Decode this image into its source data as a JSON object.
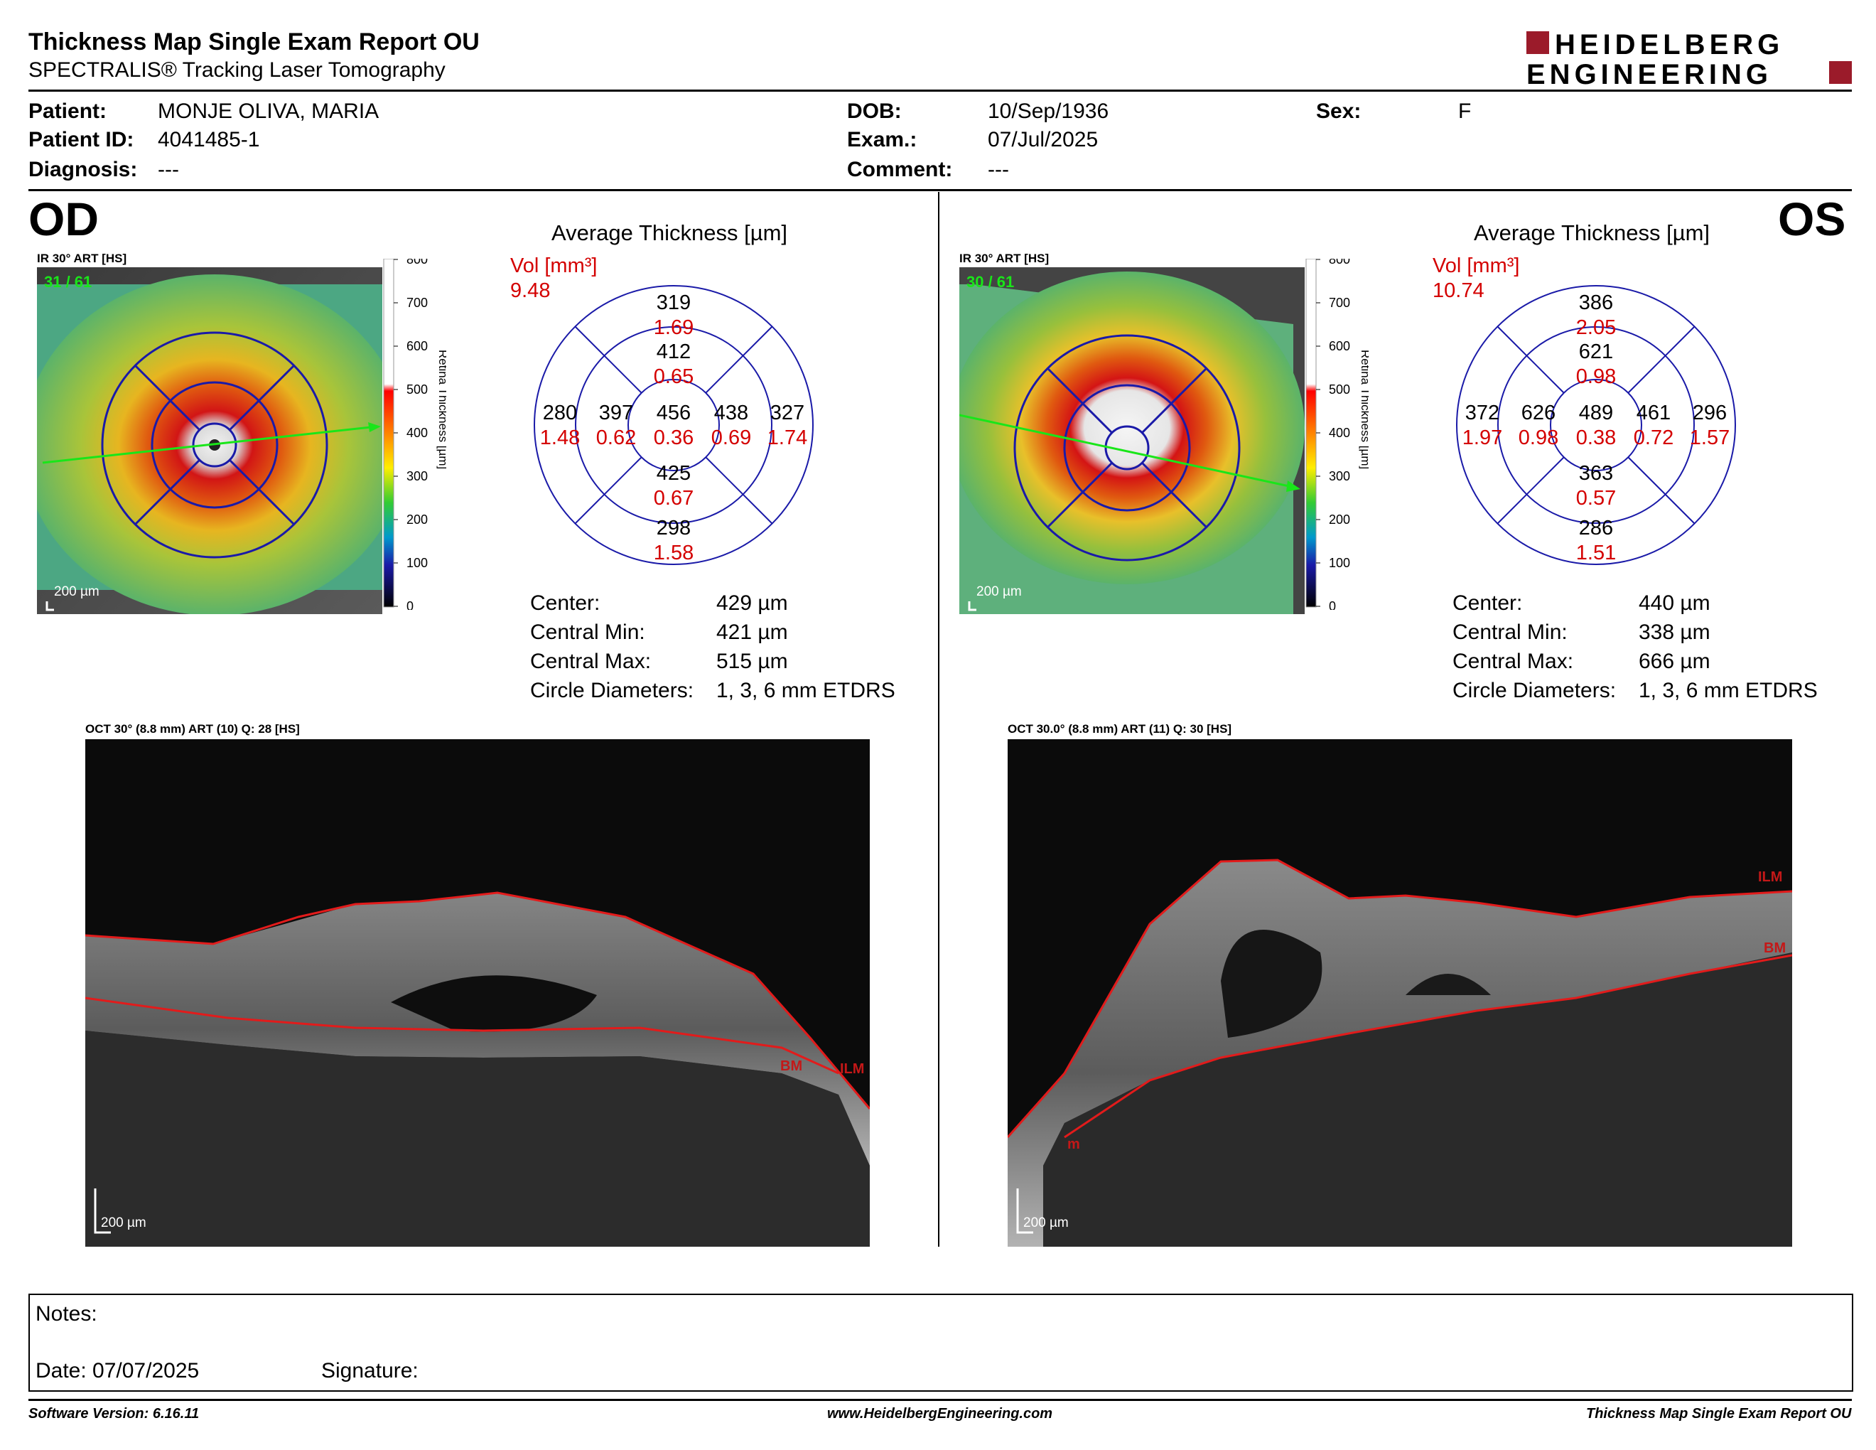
{
  "header": {
    "title": "Thickness Map Single Exam Report OU",
    "subtitle": "SPECTRALIS® Tracking Laser Tomography",
    "logo_line1": "HEIDELBERG",
    "logo_line2": "ENGINEERING"
  },
  "patient": {
    "patient_label": "Patient:",
    "patient_value": "MONJE OLIVA, MARIA",
    "id_label": "Patient ID:",
    "id_value": "4041485-1",
    "diagnosis_label": "Diagnosis:",
    "diagnosis_value": "---",
    "dob_label": "DOB:",
    "dob_value": "10/Sep/1936",
    "exam_label": "Exam.:",
    "exam_value": "07/Jul/2025",
    "comment_label": "Comment:",
    "comment_value": "---",
    "sex_label": "Sex:",
    "sex_value": "F"
  },
  "common": {
    "avg_title": "Average Thickness [µm]",
    "vol_label": "Vol [mm³]",
    "scale_title": "Retina  Thickness [µm]",
    "scale_ticks": [
      "800",
      "700",
      "600",
      "500",
      "400",
      "300",
      "200",
      "100",
      "0"
    ],
    "scalebar": "200 µm",
    "center_label": "Center:",
    "min_label": "Central Min:",
    "max_label": "Central Max:",
    "diam_label": "Circle Diameters:",
    "diam_value": "1, 3, 6 mm ETDRS"
  },
  "od": {
    "eye": "OD",
    "ir_label": "IR 30° ART [HS]",
    "frame": "31 / 61",
    "vol_total": "9.48",
    "grid": {
      "center": {
        "t": "456",
        "v": "0.36"
      },
      "inner_sup": {
        "t": "412",
        "v": "0.65"
      },
      "inner_temp": {
        "t": "397",
        "v": "0.62"
      },
      "inner_nasal": {
        "t": "438",
        "v": "0.69"
      },
      "inner_inf": {
        "t": "425",
        "v": "0.67"
      },
      "outer_sup": {
        "t": "319",
        "v": "1.69"
      },
      "outer_temp": {
        "t": "280",
        "v": "1.48"
      },
      "outer_nasal": {
        "t": "327",
        "v": "1.74"
      },
      "outer_inf": {
        "t": "298",
        "v": "1.58"
      }
    },
    "center_value": "429 µm",
    "min_value": "421 µm",
    "max_value": "515 µm",
    "oct_label": "OCT 30° (8.8 mm) ART (10) Q: 28 [HS]",
    "oct_tags": [
      "BM",
      "ILM"
    ]
  },
  "os": {
    "eye": "OS",
    "ir_label": "IR 30° ART [HS]",
    "frame": "30 / 61",
    "vol_total": "10.74",
    "grid": {
      "center": {
        "t": "489",
        "v": "0.38"
      },
      "inner_sup": {
        "t": "621",
        "v": "0.98"
      },
      "inner_temp": {
        "t": "626",
        "v": "0.98"
      },
      "inner_nasal": {
        "t": "461",
        "v": "0.72"
      },
      "inner_inf": {
        "t": "363",
        "v": "0.57"
      },
      "outer_sup": {
        "t": "386",
        "v": "2.05"
      },
      "outer_temp": {
        "t": "372",
        "v": "1.97"
      },
      "outer_nasal": {
        "t": "296",
        "v": "1.57"
      },
      "outer_inf": {
        "t": "286",
        "v": "1.51"
      }
    },
    "center_value": "440 µm",
    "min_value": "338 µm",
    "max_value": "666 µm",
    "oct_label": "OCT 30.0° (8.8 mm) ART (11) Q: 30 [HS]",
    "oct_tags": [
      "ILM",
      "BM",
      "m"
    ]
  },
  "notes": {
    "notes_label": "Notes:",
    "date_label": "Date: 07/07/2025",
    "signature_label": "Signature:"
  },
  "footer": {
    "left": "Software Version: 6.16.11",
    "center": "www.HeidelbergEngineering.com",
    "right": "Thickness Map Single Exam Report OU"
  },
  "colors": {
    "grid_blue": "#1a1aa8",
    "volume_red": "#d40000",
    "logo_red": "#9b1b2a",
    "boundary_red": "#e21b1b",
    "arrow_green": "#19e619"
  }
}
